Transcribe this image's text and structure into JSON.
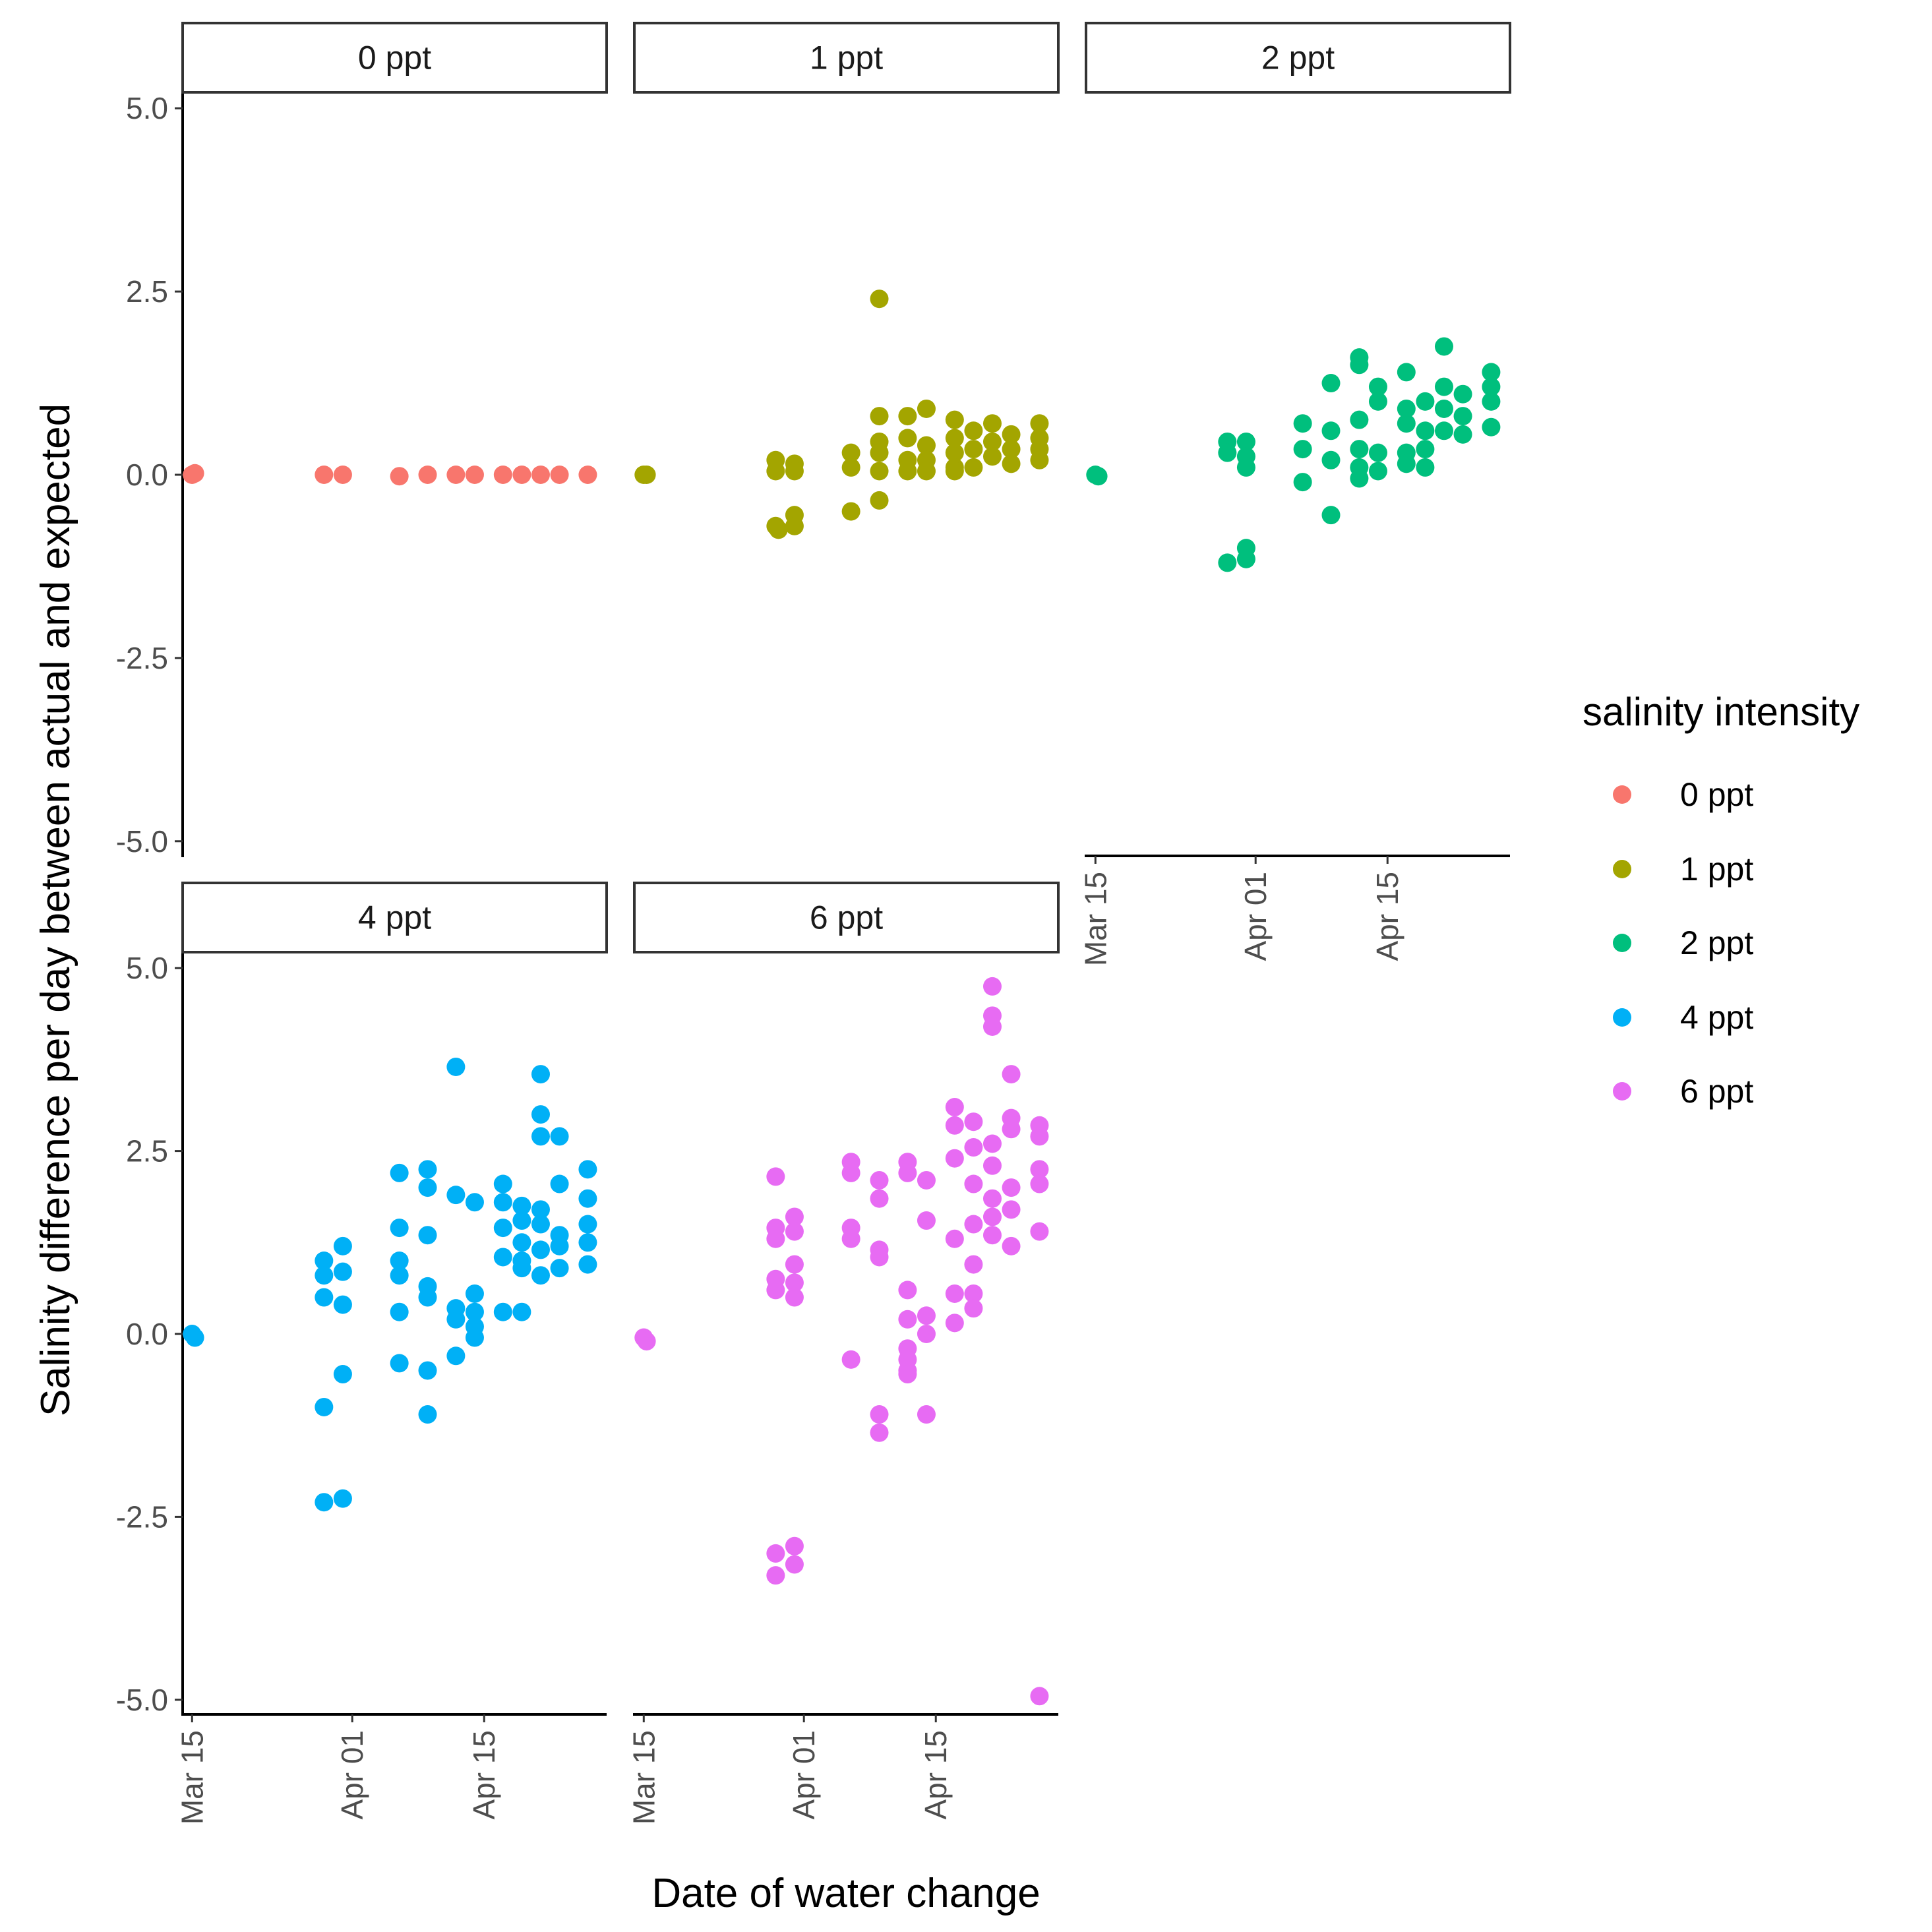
{
  "chart_data": {
    "type": "scatter",
    "xlabel": "Date of water change",
    "ylabel": "Salinity difference per day between actual and expected",
    "ylim": [
      -5.2,
      5.2
    ],
    "y_ticks": [
      5.0,
      2.5,
      0.0,
      -2.5,
      -5.0
    ],
    "y_tick_labels": [
      "5.0",
      "2.5",
      "0.0",
      "-2.5",
      "-5.0"
    ],
    "x_unit": "days since Mar 15",
    "xlim": [
      -1,
      44
    ],
    "x_ticks": [
      0,
      17,
      31
    ],
    "x_tick_labels": [
      "Mar 15",
      "Apr 01",
      "Apr 15"
    ],
    "legend": {
      "title": "salinity intensity",
      "entries": [
        "0 ppt",
        "1 ppt",
        "2 ppt",
        "4 ppt",
        "6 ppt"
      ]
    },
    "colors": {
      "0 ppt": "#F8766D",
      "1 ppt": "#A3A500",
      "2 ppt": "#00BF7D",
      "4 ppt": "#00B0F6",
      "6 ppt": "#E76BF3"
    },
    "panels": [
      {
        "name": "0 ppt",
        "points": [
          {
            "x": 0,
            "y": 0.0
          },
          {
            "x": 0.3,
            "y": 0.02
          },
          {
            "x": 14,
            "y": 0.0
          },
          {
            "x": 16,
            "y": 0.0
          },
          {
            "x": 22,
            "y": -0.02
          },
          {
            "x": 25,
            "y": 0.0
          },
          {
            "x": 28,
            "y": 0.0
          },
          {
            "x": 30,
            "y": 0.0
          },
          {
            "x": 33,
            "y": 0.0
          },
          {
            "x": 35,
            "y": 0.0
          },
          {
            "x": 37,
            "y": 0.0
          },
          {
            "x": 39,
            "y": 0.0
          },
          {
            "x": 42,
            "y": 0.0
          }
        ]
      },
      {
        "name": "1 ppt",
        "points": [
          {
            "x": 0,
            "y": 0.0
          },
          {
            "x": 0.3,
            "y": 0.0
          },
          {
            "x": 14,
            "y": 0.2
          },
          {
            "x": 14,
            "y": 0.05
          },
          {
            "x": 14,
            "y": -0.7
          },
          {
            "x": 14.3,
            "y": -0.75
          },
          {
            "x": 16,
            "y": 0.15
          },
          {
            "x": 16,
            "y": 0.05
          },
          {
            "x": 16,
            "y": -0.55
          },
          {
            "x": 16,
            "y": -0.7
          },
          {
            "x": 22,
            "y": 0.3
          },
          {
            "x": 22,
            "y": 0.1
          },
          {
            "x": 22,
            "y": -0.5
          },
          {
            "x": 25,
            "y": 2.4
          },
          {
            "x": 25,
            "y": 0.8
          },
          {
            "x": 25,
            "y": 0.45
          },
          {
            "x": 25,
            "y": 0.3
          },
          {
            "x": 25,
            "y": 0.05
          },
          {
            "x": 25,
            "y": -0.35
          },
          {
            "x": 28,
            "y": 0.8
          },
          {
            "x": 28,
            "y": 0.5
          },
          {
            "x": 28,
            "y": 0.2
          },
          {
            "x": 28,
            "y": 0.05
          },
          {
            "x": 30,
            "y": 0.9
          },
          {
            "x": 30,
            "y": 0.4
          },
          {
            "x": 30,
            "y": 0.2
          },
          {
            "x": 30,
            "y": 0.05
          },
          {
            "x": 33,
            "y": 0.75
          },
          {
            "x": 33,
            "y": 0.5
          },
          {
            "x": 33,
            "y": 0.3
          },
          {
            "x": 33,
            "y": 0.1
          },
          {
            "x": 33,
            "y": 0.05
          },
          {
            "x": 35,
            "y": 0.6
          },
          {
            "x": 35,
            "y": 0.35
          },
          {
            "x": 35,
            "y": 0.1
          },
          {
            "x": 37,
            "y": 0.7
          },
          {
            "x": 37,
            "y": 0.45
          },
          {
            "x": 37,
            "y": 0.25
          },
          {
            "x": 39,
            "y": 0.55
          },
          {
            "x": 39,
            "y": 0.35
          },
          {
            "x": 39,
            "y": 0.15
          },
          {
            "x": 42,
            "y": 0.7
          },
          {
            "x": 42,
            "y": 0.5
          },
          {
            "x": 42,
            "y": 0.35
          },
          {
            "x": 42,
            "y": 0.2
          }
        ]
      },
      {
        "name": "2 ppt",
        "points": [
          {
            "x": 0,
            "y": 0.0
          },
          {
            "x": 0.3,
            "y": -0.02
          },
          {
            "x": 14,
            "y": 0.45
          },
          {
            "x": 14,
            "y": 0.3
          },
          {
            "x": 14,
            "y": -1.2
          },
          {
            "x": 16,
            "y": 0.45
          },
          {
            "x": 16,
            "y": 0.25
          },
          {
            "x": 16,
            "y": 0.1
          },
          {
            "x": 16,
            "y": -1.0
          },
          {
            "x": 16,
            "y": -1.15
          },
          {
            "x": 22,
            "y": 0.7
          },
          {
            "x": 22,
            "y": 0.35
          },
          {
            "x": 22,
            "y": -0.1
          },
          {
            "x": 25,
            "y": 1.25
          },
          {
            "x": 25,
            "y": 0.6
          },
          {
            "x": 25,
            "y": 0.2
          },
          {
            "x": 25,
            "y": -0.55
          },
          {
            "x": 28,
            "y": 1.6
          },
          {
            "x": 28,
            "y": 1.5
          },
          {
            "x": 28,
            "y": 0.75
          },
          {
            "x": 28,
            "y": 0.35
          },
          {
            "x": 28,
            "y": 0.1
          },
          {
            "x": 28,
            "y": -0.05
          },
          {
            "x": 30,
            "y": 1.2
          },
          {
            "x": 30,
            "y": 1.0
          },
          {
            "x": 30,
            "y": 0.3
          },
          {
            "x": 30,
            "y": 0.05
          },
          {
            "x": 33,
            "y": 1.4
          },
          {
            "x": 33,
            "y": 0.9
          },
          {
            "x": 33,
            "y": 0.7
          },
          {
            "x": 33,
            "y": 0.3
          },
          {
            "x": 33,
            "y": 0.15
          },
          {
            "x": 35,
            "y": 1.0
          },
          {
            "x": 35,
            "y": 0.6
          },
          {
            "x": 35,
            "y": 0.35
          },
          {
            "x": 35,
            "y": 0.1
          },
          {
            "x": 37,
            "y": 1.75
          },
          {
            "x": 37,
            "y": 1.2
          },
          {
            "x": 37,
            "y": 0.9
          },
          {
            "x": 37,
            "y": 0.6
          },
          {
            "x": 39,
            "y": 1.1
          },
          {
            "x": 39,
            "y": 0.8
          },
          {
            "x": 39,
            "y": 0.55
          },
          {
            "x": 42,
            "y": 1.4
          },
          {
            "x": 42,
            "y": 1.2
          },
          {
            "x": 42,
            "y": 1.0
          },
          {
            "x": 42,
            "y": 0.65
          }
        ]
      },
      {
        "name": "4 ppt",
        "points": [
          {
            "x": 0,
            "y": 0.0
          },
          {
            "x": 0.3,
            "y": -0.05
          },
          {
            "x": 14,
            "y": 1.0
          },
          {
            "x": 14,
            "y": 0.8
          },
          {
            "x": 14,
            "y": 0.5
          },
          {
            "x": 14,
            "y": -1.0
          },
          {
            "x": 14,
            "y": -2.3
          },
          {
            "x": 16,
            "y": 1.2
          },
          {
            "x": 16,
            "y": 0.85
          },
          {
            "x": 16,
            "y": 0.4
          },
          {
            "x": 16,
            "y": -0.55
          },
          {
            "x": 16,
            "y": -2.25
          },
          {
            "x": 22,
            "y": 2.2
          },
          {
            "x": 22,
            "y": 1.45
          },
          {
            "x": 22,
            "y": 1.0
          },
          {
            "x": 22,
            "y": 0.8
          },
          {
            "x": 22,
            "y": 0.3
          },
          {
            "x": 22,
            "y": -0.4
          },
          {
            "x": 25,
            "y": 2.25
          },
          {
            "x": 25,
            "y": 2.0
          },
          {
            "x": 25,
            "y": 1.35
          },
          {
            "x": 25,
            "y": 0.65
          },
          {
            "x": 25,
            "y": 0.5
          },
          {
            "x": 25,
            "y": -0.5
          },
          {
            "x": 25,
            "y": -1.1
          },
          {
            "x": 28,
            "y": 3.65
          },
          {
            "x": 28,
            "y": 1.9
          },
          {
            "x": 28,
            "y": 0.35
          },
          {
            "x": 28,
            "y": 0.2
          },
          {
            "x": 28,
            "y": -0.3
          },
          {
            "x": 30,
            "y": 1.8
          },
          {
            "x": 30,
            "y": 0.55
          },
          {
            "x": 30,
            "y": 0.3
          },
          {
            "x": 30,
            "y": 0.1
          },
          {
            "x": 30,
            "y": -0.05
          },
          {
            "x": 33,
            "y": 2.05
          },
          {
            "x": 33,
            "y": 1.8
          },
          {
            "x": 33,
            "y": 1.45
          },
          {
            "x": 33,
            "y": 1.05
          },
          {
            "x": 33,
            "y": 0.3
          },
          {
            "x": 35,
            "y": 1.75
          },
          {
            "x": 35,
            "y": 1.55
          },
          {
            "x": 35,
            "y": 1.25
          },
          {
            "x": 35,
            "y": 1.0
          },
          {
            "x": 35,
            "y": 0.9
          },
          {
            "x": 35,
            "y": 0.3
          },
          {
            "x": 37,
            "y": 3.55
          },
          {
            "x": 37,
            "y": 3.0
          },
          {
            "x": 37,
            "y": 2.7
          },
          {
            "x": 37,
            "y": 1.7
          },
          {
            "x": 37,
            "y": 1.5
          },
          {
            "x": 37,
            "y": 1.15
          },
          {
            "x": 37,
            "y": 0.8
          },
          {
            "x": 39,
            "y": 2.7
          },
          {
            "x": 39,
            "y": 2.05
          },
          {
            "x": 39,
            "y": 1.35
          },
          {
            "x": 39,
            "y": 1.2
          },
          {
            "x": 39,
            "y": 0.9
          },
          {
            "x": 42,
            "y": 2.25
          },
          {
            "x": 42,
            "y": 1.85
          },
          {
            "x": 42,
            "y": 1.5
          },
          {
            "x": 42,
            "y": 1.25
          },
          {
            "x": 42,
            "y": 0.95
          }
        ]
      },
      {
        "name": "6 ppt",
        "points": [
          {
            "x": 0,
            "y": -0.05
          },
          {
            "x": 0.3,
            "y": -0.1
          },
          {
            "x": 14,
            "y": 2.15
          },
          {
            "x": 14,
            "y": 1.45
          },
          {
            "x": 14,
            "y": 1.3
          },
          {
            "x": 14,
            "y": 0.75
          },
          {
            "x": 14,
            "y": 0.6
          },
          {
            "x": 14,
            "y": -3.0
          },
          {
            "x": 14,
            "y": -3.3
          },
          {
            "x": 16,
            "y": 1.6
          },
          {
            "x": 16,
            "y": 1.4
          },
          {
            "x": 16,
            "y": 0.95
          },
          {
            "x": 16,
            "y": 0.7
          },
          {
            "x": 16,
            "y": 0.5
          },
          {
            "x": 16,
            "y": -2.9
          },
          {
            "x": 16,
            "y": -3.15
          },
          {
            "x": 22,
            "y": 2.35
          },
          {
            "x": 22,
            "y": 2.2
          },
          {
            "x": 22,
            "y": 1.45
          },
          {
            "x": 22,
            "y": 1.3
          },
          {
            "x": 22,
            "y": -0.35
          },
          {
            "x": 25,
            "y": 2.1
          },
          {
            "x": 25,
            "y": 1.85
          },
          {
            "x": 25,
            "y": 1.15
          },
          {
            "x": 25,
            "y": 1.05
          },
          {
            "x": 25,
            "y": -1.1
          },
          {
            "x": 25,
            "y": -1.35
          },
          {
            "x": 28,
            "y": 2.35
          },
          {
            "x": 28,
            "y": 2.2
          },
          {
            "x": 28,
            "y": 0.6
          },
          {
            "x": 28,
            "y": 0.2
          },
          {
            "x": 28,
            "y": -0.2
          },
          {
            "x": 28,
            "y": -0.35
          },
          {
            "x": 28,
            "y": -0.5
          },
          {
            "x": 28,
            "y": -0.55
          },
          {
            "x": 30,
            "y": 2.1
          },
          {
            "x": 30,
            "y": 1.55
          },
          {
            "x": 30,
            "y": 0.25
          },
          {
            "x": 30,
            "y": 0.0
          },
          {
            "x": 30,
            "y": -1.1
          },
          {
            "x": 33,
            "y": 3.1
          },
          {
            "x": 33,
            "y": 2.85
          },
          {
            "x": 33,
            "y": 2.4
          },
          {
            "x": 33,
            "y": 1.3
          },
          {
            "x": 33,
            "y": 0.55
          },
          {
            "x": 33,
            "y": 0.15
          },
          {
            "x": 35,
            "y": 2.9
          },
          {
            "x": 35,
            "y": 2.55
          },
          {
            "x": 35,
            "y": 2.05
          },
          {
            "x": 35,
            "y": 1.5
          },
          {
            "x": 35,
            "y": 0.95
          },
          {
            "x": 35,
            "y": 0.55
          },
          {
            "x": 35,
            "y": 0.35
          },
          {
            "x": 37,
            "y": 4.75
          },
          {
            "x": 37,
            "y": 4.35
          },
          {
            "x": 37,
            "y": 4.2
          },
          {
            "x": 37,
            "y": 2.6
          },
          {
            "x": 37,
            "y": 2.3
          },
          {
            "x": 37,
            "y": 1.85
          },
          {
            "x": 37,
            "y": 1.6
          },
          {
            "x": 37,
            "y": 1.35
          },
          {
            "x": 39,
            "y": 3.55
          },
          {
            "x": 39,
            "y": 2.95
          },
          {
            "x": 39,
            "y": 2.8
          },
          {
            "x": 39,
            "y": 2.0
          },
          {
            "x": 39,
            "y": 1.7
          },
          {
            "x": 39,
            "y": 1.2
          },
          {
            "x": 42,
            "y": 2.85
          },
          {
            "x": 42,
            "y": 2.7
          },
          {
            "x": 42,
            "y": 2.25
          },
          {
            "x": 42,
            "y": 2.05
          },
          {
            "x": 42,
            "y": 1.4
          },
          {
            "x": 42,
            "y": -4.95
          }
        ]
      }
    ]
  }
}
